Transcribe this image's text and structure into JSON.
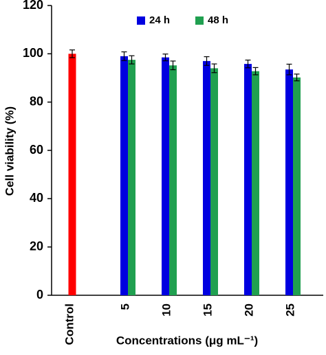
{
  "chart_data": {
    "type": "bar",
    "xlabel": "Concentrations (μg mL⁻¹)",
    "ylabel": "Cell viability (%)",
    "categories": [
      "Control",
      "5",
      "10",
      "15",
      "20",
      "25"
    ],
    "control_bar": {
      "value": 100,
      "error": 1.6,
      "color": "#ff0000"
    },
    "series": [
      {
        "name": "24 h",
        "color": "#0000e0",
        "values": [
          null,
          99,
          98.5,
          97,
          95.8,
          93.5
        ],
        "errors": [
          null,
          1.8,
          1.4,
          1.8,
          1.6,
          2.2
        ]
      },
      {
        "name": "48 h",
        "color": "#20a050",
        "values": [
          null,
          97.5,
          95.2,
          94,
          92.8,
          90.2
        ],
        "errors": [
          null,
          1.7,
          1.8,
          1.8,
          1.5,
          1.4
        ]
      }
    ],
    "ylim": [
      0,
      120
    ],
    "yticks": [
      0,
      20,
      40,
      60,
      80,
      100,
      120
    ]
  }
}
